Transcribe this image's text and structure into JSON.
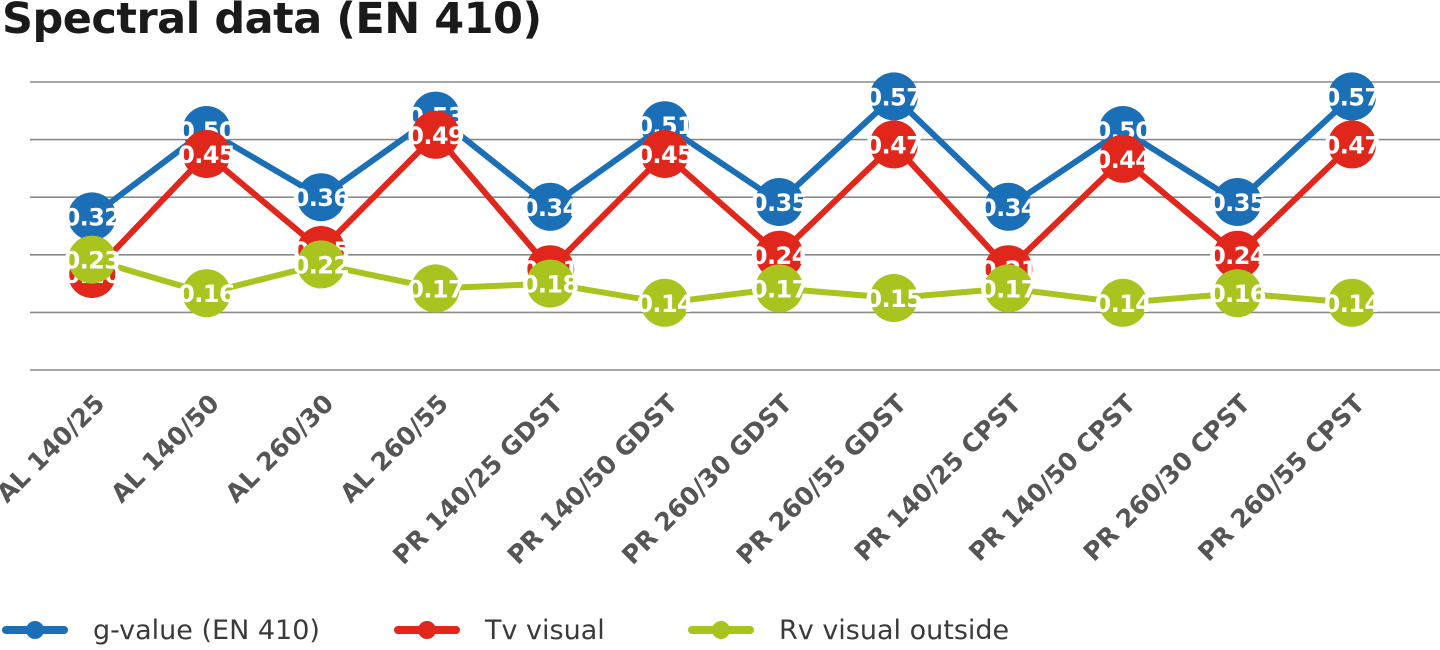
{
  "title": "Spectral data (EN 410)",
  "chart_data": {
    "type": "line",
    "title": "Spectral data (EN 410)",
    "xlabel": "",
    "ylabel": "",
    "ylim": [
      0,
      0.6
    ],
    "grid": true,
    "legend_position": "bottom",
    "categories": [
      "AL 140/25",
      "AL 140/50",
      "AL 260/30",
      "AL 260/55",
      "PR 140/25 GDST",
      "PR 140/50 GDST",
      "PR 260/30 GDST",
      "PR 260/55 GDST",
      "PR 140/25 CPST",
      "PR 140/50 CPST",
      "PR 260/30 CPST",
      "PR 260/55 CPST"
    ],
    "series": [
      {
        "name": "g-value (EN 410)",
        "color": "#1a6fb6",
        "values": [
          0.32,
          0.5,
          0.36,
          0.53,
          0.34,
          0.51,
          0.35,
          0.57,
          0.34,
          0.5,
          0.35,
          0.57
        ],
        "labels": [
          "0.32",
          "0.50",
          "0.36",
          "0.53",
          "0.34",
          "0.51",
          "0.35",
          "0.57",
          "0.34",
          "0.50",
          "0.35",
          "0.57"
        ]
      },
      {
        "name": "Tv visual",
        "color": "#e1261c",
        "values": [
          0.2,
          0.45,
          0.25,
          0.49,
          0.21,
          0.45,
          0.24,
          0.47,
          0.21,
          0.44,
          0.24,
          0.47
        ],
        "labels": [
          "0.20",
          "0.45",
          "0.25",
          "0.49",
          "0.21",
          "0.45",
          "0.24",
          "0.47",
          "0.21",
          "0.44",
          "0.24",
          "0.47"
        ]
      },
      {
        "name": "Rv visual outside",
        "color": "#a9c31f",
        "values": [
          0.23,
          0.16,
          0.22,
          0.17,
          0.18,
          0.14,
          0.17,
          0.15,
          0.17,
          0.14,
          0.16,
          0.14
        ],
        "labels": [
          "0.23",
          "0.16",
          "0.22",
          "0.17",
          "0.18",
          "0.14",
          "0.17",
          "0.15",
          "0.17",
          "0.14",
          "0.16",
          "0.14"
        ]
      }
    ]
  }
}
